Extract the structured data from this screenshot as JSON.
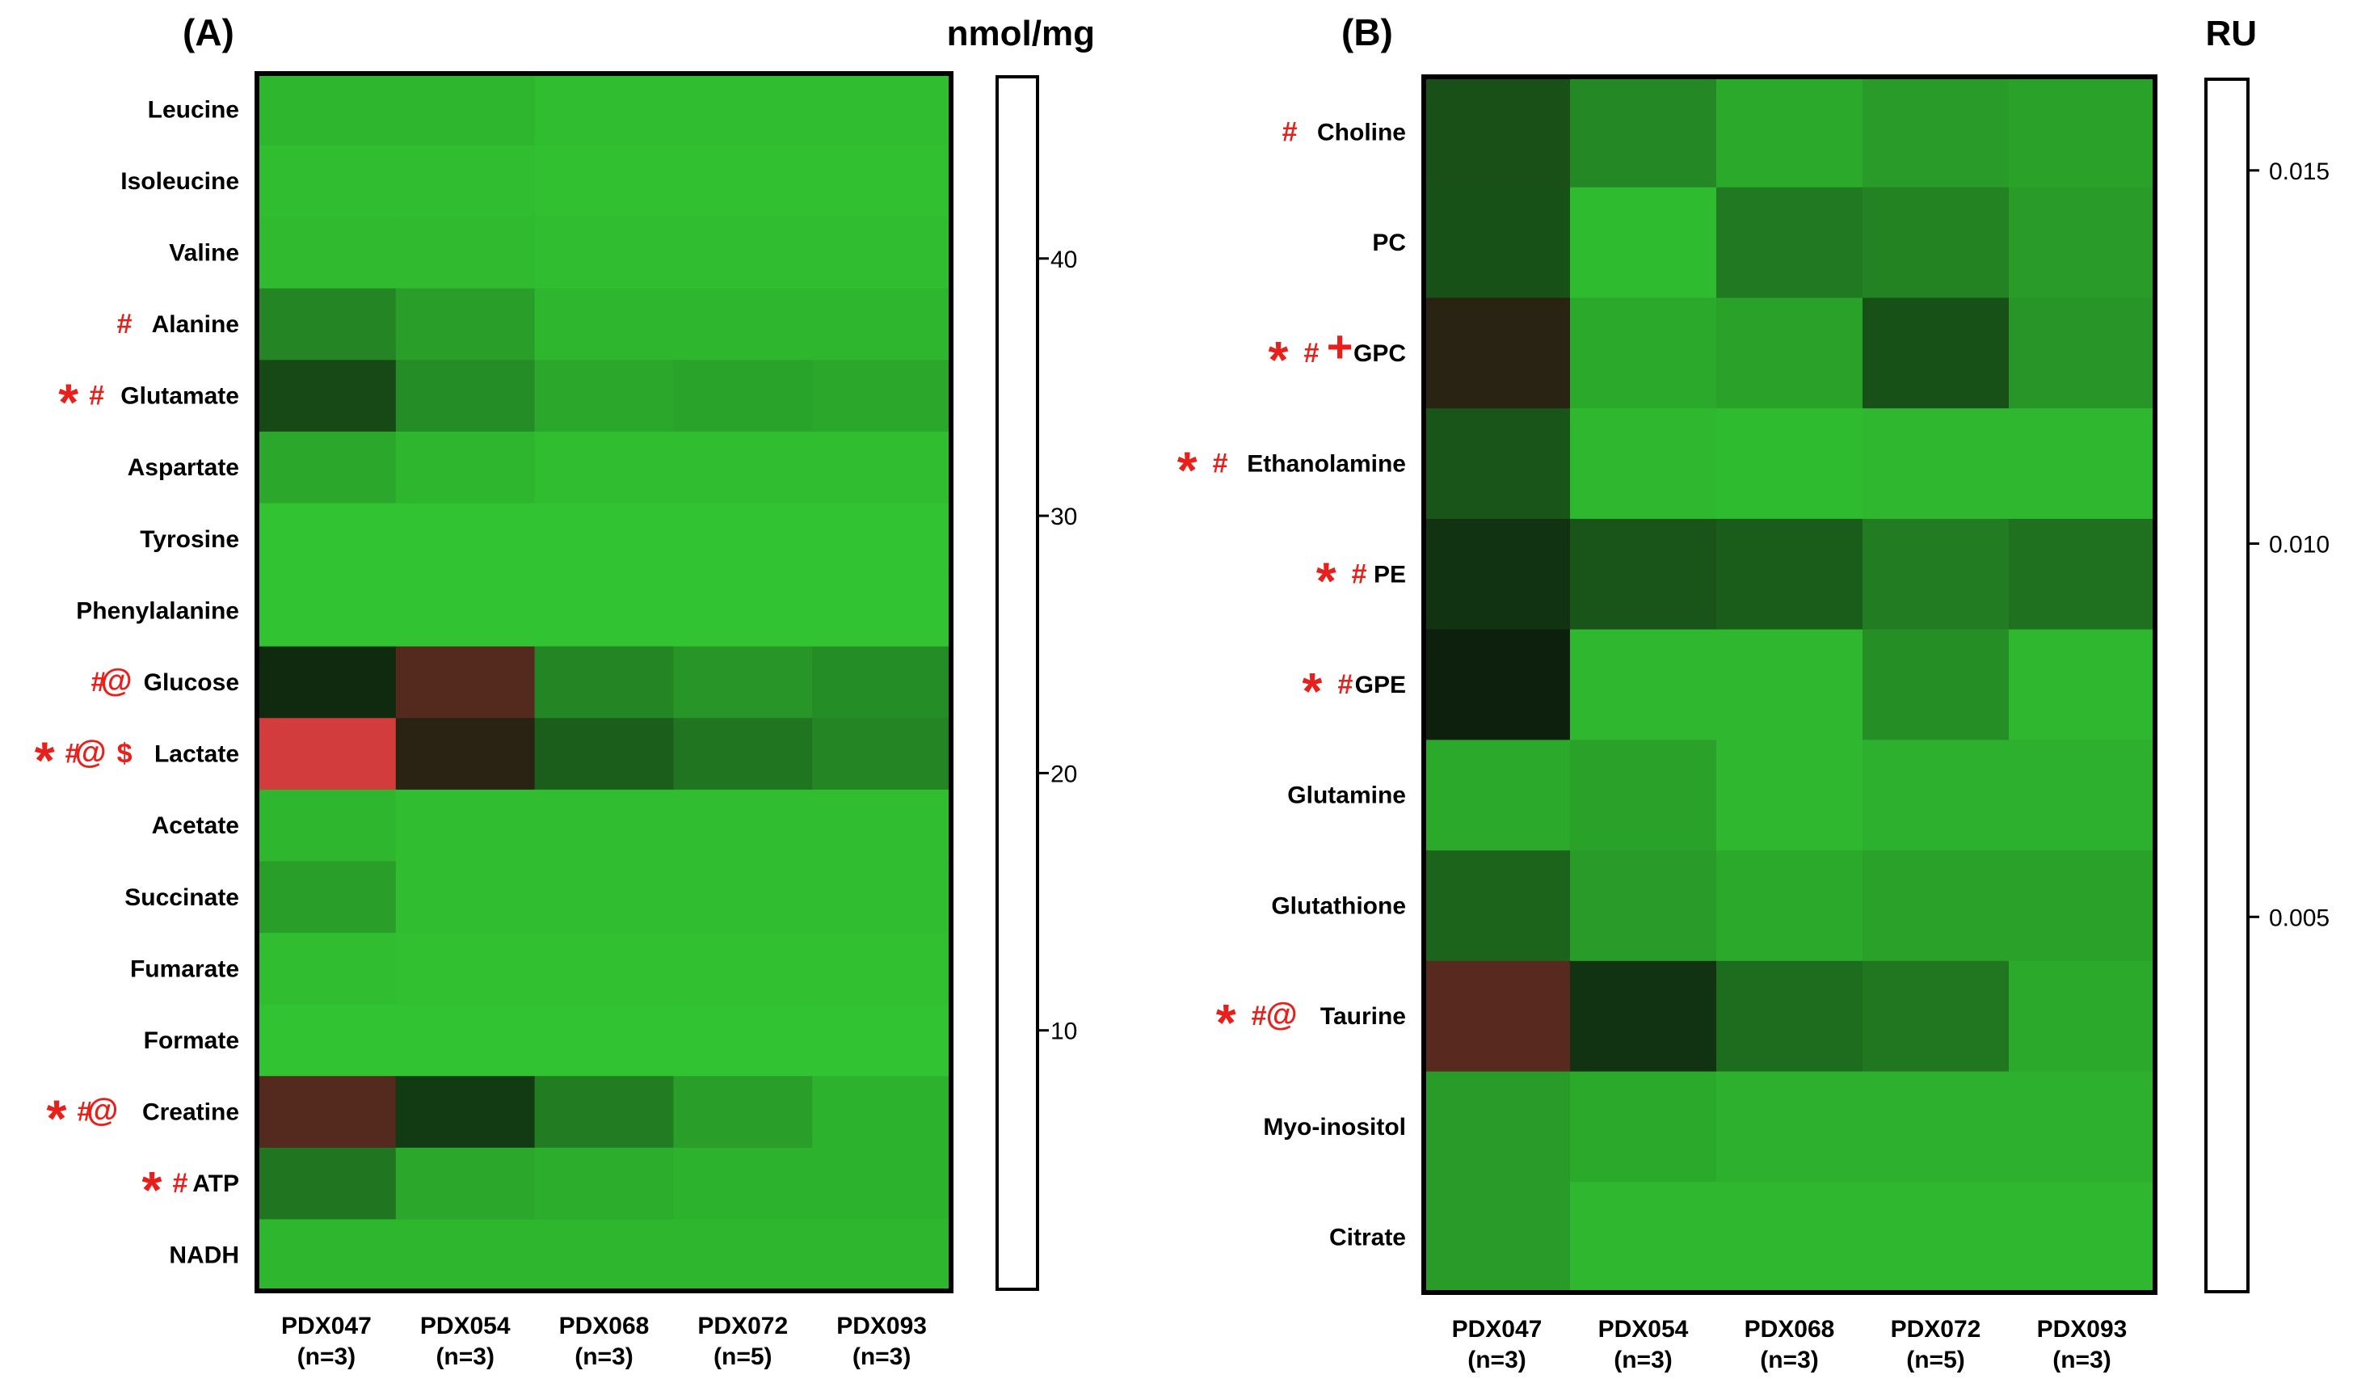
{
  "colors": {
    "scale_min": "#33cc33",
    "scale_mid": "#0d1f0d",
    "scale_max": "#d23c3c",
    "marker": "#e8201c",
    "colorbar_fill": "#ffffff"
  },
  "chart_data": [
    {
      "type": "heatmap",
      "panel": "(A)",
      "unit": "nmol/mg",
      "columns": [
        {
          "name": "PDX047",
          "n": "(n=3)"
        },
        {
          "name": "PDX054",
          "n": "(n=3)"
        },
        {
          "name": "PDX068",
          "n": "(n=3)"
        },
        {
          "name": "PDX072",
          "n": "(n=5)"
        },
        {
          "name": "PDX093",
          "n": "(n=3)"
        }
      ],
      "rows": [
        {
          "label": "Leucine",
          "markers": [],
          "values": [
            3.0,
            3.0,
            2.0,
            2.0,
            2.0
          ]
        },
        {
          "label": "Isoleucine",
          "markers": [],
          "values": [
            2.0,
            2.0,
            1.5,
            1.5,
            1.5
          ]
        },
        {
          "label": "Valine",
          "markers": [],
          "values": [
            2.5,
            2.5,
            2.0,
            2.0,
            2.0
          ]
        },
        {
          "label": "Alanine",
          "markers": [
            "#"
          ],
          "values": [
            14.0,
            8.0,
            3.0,
            3.0,
            3.0
          ]
        },
        {
          "label": "Glutamate",
          "markers": [
            "*",
            "#"
          ],
          "values": [
            30.0,
            12.0,
            6.0,
            7.0,
            6.0
          ]
        },
        {
          "label": "Aspartate",
          "markers": [],
          "values": [
            6.0,
            3.0,
            2.0,
            2.0,
            2.0
          ]
        },
        {
          "label": "Tyrosine",
          "markers": [],
          "values": [
            1.0,
            1.0,
            1.0,
            1.0,
            1.0
          ]
        },
        {
          "label": "Phenylalanine",
          "markers": [],
          "values": [
            1.0,
            1.0,
            1.0,
            1.0,
            1.0
          ]
        },
        {
          "label": "Glucose",
          "markers": [
            "#",
            "@"
          ],
          "values": [
            39.0,
            44.0,
            14.0,
            10.0,
            12.0
          ]
        },
        {
          "label": "Lactate",
          "markers": [
            "*",
            "#",
            "@",
            "$"
          ],
          "values": [
            48.0,
            43.0,
            24.0,
            18.0,
            14.0
          ]
        },
        {
          "label": "Acetate",
          "markers": [],
          "values": [
            3.0,
            2.0,
            2.0,
            2.0,
            2.0
          ]
        },
        {
          "label": "Succinate",
          "markers": [],
          "values": [
            8.0,
            2.0,
            2.0,
            2.0,
            2.0
          ]
        },
        {
          "label": "Fumarate",
          "markers": [],
          "values": [
            2.0,
            1.5,
            1.5,
            1.5,
            1.5
          ]
        },
        {
          "label": "Formate",
          "markers": [],
          "values": [
            1.0,
            1.0,
            1.0,
            1.0,
            1.0
          ]
        },
        {
          "label": "Creatine",
          "markers": [
            "*",
            "#",
            "@"
          ],
          "values": [
            44.0,
            34.0,
            16.0,
            8.0,
            4.0
          ]
        },
        {
          "label": "ATP",
          "markers": [
            "*",
            "#"
          ],
          "values": [
            18.0,
            6.0,
            5.0,
            4.0,
            4.0
          ]
        },
        {
          "label": "NADH",
          "markers": [],
          "values": [
            3.0,
            3.0,
            3.0,
            3.0,
            3.0
          ]
        }
      ],
      "colorbar": {
        "min": 0,
        "max": 47,
        "ticks": [
          10,
          20,
          30,
          40
        ]
      }
    },
    {
      "type": "heatmap",
      "panel": "(B)",
      "unit": "RU",
      "columns": [
        {
          "name": "PDX047",
          "n": "(n=3)"
        },
        {
          "name": "PDX054",
          "n": "(n=3)"
        },
        {
          "name": "PDX068",
          "n": "(n=3)"
        },
        {
          "name": "PDX072",
          "n": "(n=5)"
        },
        {
          "name": "PDX093",
          "n": "(n=3)"
        }
      ],
      "rows": [
        {
          "label": "Choline",
          "markers": [
            "#"
          ],
          "values": [
            0.0096,
            0.0045,
            0.002,
            0.003,
            0.0025
          ]
        },
        {
          "label": "PC",
          "markers": [],
          "values": [
            0.0095,
            0.0008,
            0.0058,
            0.005,
            0.003
          ]
        },
        {
          "label": "GPC",
          "markers": [
            "*",
            "#",
            "+"
          ],
          "values": [
            0.0148,
            0.002,
            0.0025,
            0.0095,
            0.0035
          ]
        },
        {
          "label": "Ethanolamine",
          "markers": [
            "*",
            "#"
          ],
          "values": [
            0.0092,
            0.001,
            0.0008,
            0.001,
            0.001
          ]
        },
        {
          "label": "PE",
          "markers": [
            "*",
            "#"
          ],
          "values": [
            0.0125,
            0.0092,
            0.0085,
            0.0055,
            0.0065
          ]
        },
        {
          "label": "GPE",
          "markers": [
            "*",
            "#"
          ],
          "values": [
            0.0145,
            0.001,
            0.001,
            0.004,
            0.001
          ]
        },
        {
          "label": "Glutamine",
          "markers": [],
          "values": [
            0.002,
            0.0025,
            0.001,
            0.0015,
            0.0015
          ]
        },
        {
          "label": "Glutathione",
          "markers": [],
          "values": [
            0.0078,
            0.003,
            0.002,
            0.0025,
            0.0025
          ]
        },
        {
          "label": "Taurine",
          "markers": [
            "*",
            "#",
            "@"
          ],
          "values": [
            0.0152,
            0.0125,
            0.007,
            0.006,
            0.002
          ]
        },
        {
          "label": "Myo-inositol",
          "markers": [],
          "values": [
            0.003,
            0.002,
            0.0015,
            0.0015,
            0.0015
          ]
        },
        {
          "label": "Citrate",
          "markers": [],
          "values": [
            0.003,
            0.001,
            0.001,
            0.001,
            0.001
          ]
        }
      ],
      "colorbar": {
        "min": 0,
        "max": 0.0162,
        "ticks": [
          0.005,
          0.01,
          0.015
        ],
        "tick_labels": [
          "0.005",
          "0.010",
          "0.015"
        ]
      }
    }
  ]
}
